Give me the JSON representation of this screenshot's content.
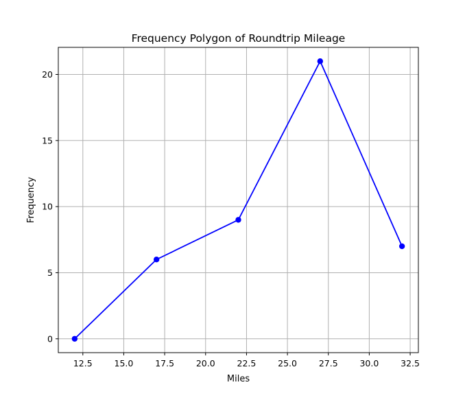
{
  "chart_data": {
    "type": "line",
    "title": "Frequency Polygon of Roundtrip Mileage",
    "xlabel": "Miles",
    "ylabel": "Frequency",
    "x": [
      12,
      17,
      22,
      27,
      32
    ],
    "series": [
      {
        "values": [
          0,
          6,
          9,
          21,
          7
        ]
      }
    ],
    "xlim": [
      11,
      33
    ],
    "ylim": [
      -1.05,
      22.05
    ],
    "xticks": [
      "12.5",
      "15.0",
      "17.5",
      "20.0",
      "22.5",
      "25.0",
      "27.5",
      "30.0",
      "32.5"
    ],
    "yticks": [
      "0",
      "5",
      "10",
      "15",
      "20"
    ],
    "grid": true,
    "marker": "circle",
    "line_color": "#0000ff",
    "grid_color": "#b0b0b0",
    "axis_color": "#000000"
  }
}
